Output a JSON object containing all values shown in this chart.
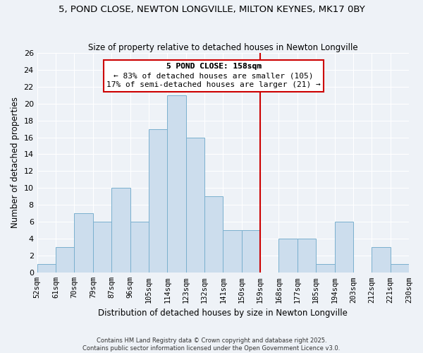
{
  "title": "5, POND CLOSE, NEWTON LONGVILLE, MILTON KEYNES, MK17 0BY",
  "subtitle": "Size of property relative to detached houses in Newton Longville",
  "xlabel": "Distribution of detached houses by size in Newton Longville",
  "ylabel": "Number of detached properties",
  "bin_labels": [
    "52sqm",
    "61sqm",
    "70sqm",
    "79sqm",
    "87sqm",
    "96sqm",
    "105sqm",
    "114sqm",
    "123sqm",
    "132sqm",
    "141sqm",
    "150sqm",
    "159sqm",
    "168sqm",
    "177sqm",
    "185sqm",
    "194sqm",
    "203sqm",
    "212sqm",
    "221sqm",
    "230sqm"
  ],
  "bin_left": [
    0,
    1,
    2,
    3,
    4,
    5,
    6,
    7,
    8,
    9,
    10,
    11,
    12,
    13,
    14,
    15,
    16,
    17,
    18,
    19
  ],
  "counts": [
    1,
    3,
    7,
    6,
    10,
    6,
    17,
    21,
    16,
    9,
    5,
    5,
    0,
    4,
    4,
    1,
    6,
    0,
    3,
    1
  ],
  "bar_color": "#ccdded",
  "bar_edge_color": "#7ab0ce",
  "reference_line_x": 12,
  "reference_line_color": "#cc0000",
  "annotation_title": "5 POND CLOSE: 158sqm",
  "annotation_line1": "← 83% of detached houses are smaller (105)",
  "annotation_line2": "17% of semi-detached houses are larger (21) →",
  "annotation_box_color": "#ffffff",
  "annotation_box_edge_color": "#cc0000",
  "ylim": [
    0,
    26
  ],
  "yticks": [
    0,
    2,
    4,
    6,
    8,
    10,
    12,
    14,
    16,
    18,
    20,
    22,
    24,
    26
  ],
  "background_color": "#eef2f7",
  "grid_color": "#ffffff",
  "footer_line1": "Contains HM Land Registry data © Crown copyright and database right 2025.",
  "footer_line2": "Contains public sector information licensed under the Open Government Licence v3.0."
}
